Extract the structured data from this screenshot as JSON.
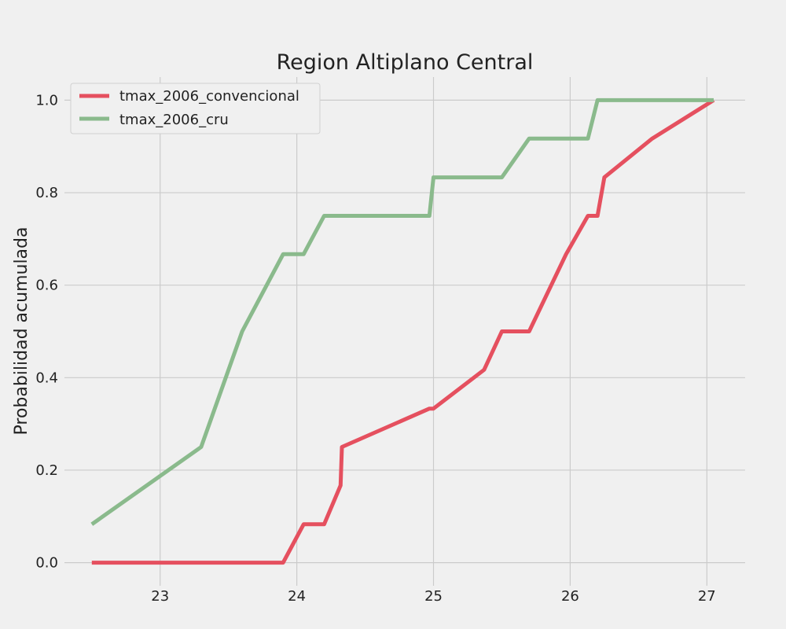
{
  "chart_data": {
    "type": "line",
    "title": "Region Altiplano Central",
    "xlabel": "",
    "ylabel": "Probabilidad acumulada",
    "xlim": [
      22.3,
      27.28
    ],
    "ylim": [
      -0.05,
      1.05
    ],
    "xticks": [
      23,
      24,
      25,
      26,
      27
    ],
    "yticks": [
      0.0,
      0.2,
      0.4,
      0.6,
      0.8,
      1.0
    ],
    "xtick_labels": [
      "23",
      "24",
      "25",
      "26",
      "27"
    ],
    "ytick_labels": [
      "0.0",
      "0.2",
      "0.4",
      "0.6",
      "0.8",
      "1.0"
    ],
    "grid": true,
    "legend_position": "top-left",
    "series": [
      {
        "name": "tmax_2006_convencional",
        "color": "#e5505f",
        "points": [
          [
            22.5,
            0.0
          ],
          [
            23.9,
            0.0
          ],
          [
            24.05,
            0.083
          ],
          [
            24.2,
            0.083
          ],
          [
            24.32,
            0.167
          ],
          [
            24.33,
            0.25
          ],
          [
            24.97,
            0.333
          ],
          [
            25.0,
            0.333
          ],
          [
            25.37,
            0.417
          ],
          [
            25.5,
            0.5
          ],
          [
            25.7,
            0.5
          ],
          [
            25.97,
            0.667
          ],
          [
            26.13,
            0.75
          ],
          [
            26.2,
            0.75
          ],
          [
            26.25,
            0.833
          ],
          [
            26.6,
            0.917
          ],
          [
            27.05,
            1.0
          ]
        ]
      },
      {
        "name": "tmax_2006_cru",
        "color": "#8aba8c",
        "points": [
          [
            22.5,
            0.083
          ],
          [
            23.3,
            0.25
          ],
          [
            23.6,
            0.5
          ],
          [
            23.9,
            0.667
          ],
          [
            24.05,
            0.667
          ],
          [
            24.2,
            0.75
          ],
          [
            24.97,
            0.75
          ],
          [
            25.0,
            0.833
          ],
          [
            25.5,
            0.833
          ],
          [
            25.7,
            0.917
          ],
          [
            26.13,
            0.917
          ],
          [
            26.2,
            1.0
          ],
          [
            27.05,
            1.0
          ]
        ]
      }
    ]
  }
}
